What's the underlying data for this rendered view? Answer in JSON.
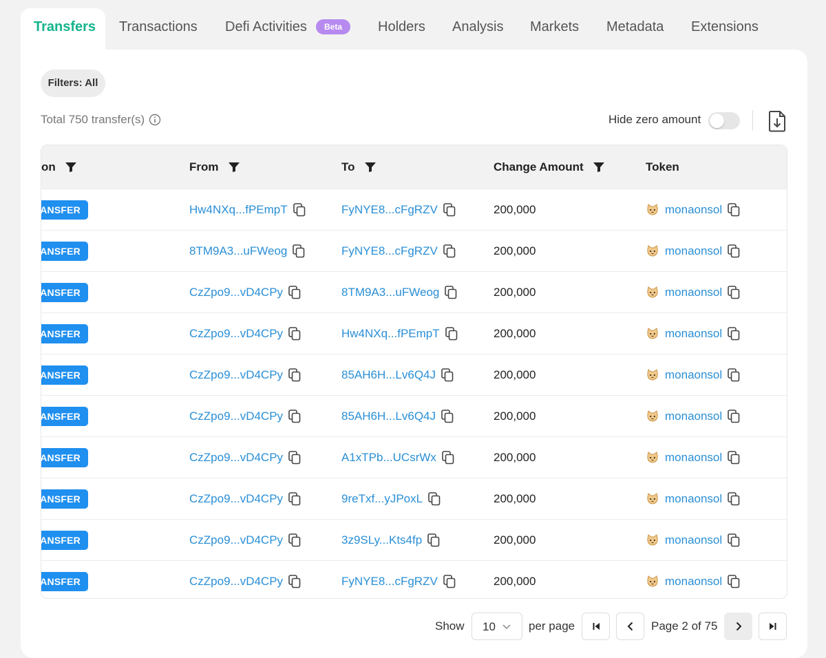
{
  "tabs": [
    {
      "label": "Transfers",
      "active": true
    },
    {
      "label": "Transactions"
    },
    {
      "label": "Defi Activities",
      "badge": "Beta"
    },
    {
      "label": "Holders"
    },
    {
      "label": "Analysis"
    },
    {
      "label": "Markets"
    },
    {
      "label": "Metadata"
    },
    {
      "label": "Extensions"
    }
  ],
  "filters": {
    "label": "Filters: All"
  },
  "summary": {
    "total": "Total 750 transfer(s)",
    "hide_zero_label": "Hide zero amount",
    "hide_zero_enabled": false
  },
  "table": {
    "columns": [
      "on",
      "From",
      "To",
      "Change Amount",
      "Token"
    ],
    "rows": [
      {
        "action": "ANSFER",
        "from": "Hw4NXq...fPEmpT",
        "to": "FyNYE8...cFgRZV",
        "amount": "200,000",
        "token": "monaonsol"
      },
      {
        "action": "ANSFER",
        "from": "8TM9A3...uFWeog",
        "to": "FyNYE8...cFgRZV",
        "amount": "200,000",
        "token": "monaonsol"
      },
      {
        "action": "ANSFER",
        "from": "CzZpo9...vD4CPy",
        "to": "8TM9A3...uFWeog",
        "amount": "200,000",
        "token": "monaonsol"
      },
      {
        "action": "ANSFER",
        "from": "CzZpo9...vD4CPy",
        "to": "Hw4NXq...fPEmpT",
        "amount": "200,000",
        "token": "monaonsol"
      },
      {
        "action": "ANSFER",
        "from": "CzZpo9...vD4CPy",
        "to": "85AH6H...Lv6Q4J",
        "amount": "200,000",
        "token": "monaonsol"
      },
      {
        "action": "ANSFER",
        "from": "CzZpo9...vD4CPy",
        "to": "85AH6H...Lv6Q4J",
        "amount": "200,000",
        "token": "monaonsol"
      },
      {
        "action": "ANSFER",
        "from": "CzZpo9...vD4CPy",
        "to": "A1xTPb...UCsrWx",
        "amount": "200,000",
        "token": "monaonsol"
      },
      {
        "action": "ANSFER",
        "from": "CzZpo9...vD4CPy",
        "to": "9reTxf...yJPoxL",
        "amount": "200,000",
        "token": "monaonsol"
      },
      {
        "action": "ANSFER",
        "from": "CzZpo9...vD4CPy",
        "to": "3z9SLy...Kts4fp",
        "amount": "200,000",
        "token": "monaonsol"
      },
      {
        "action": "ANSFER",
        "from": "CzZpo9...vD4CPy",
        "to": "FyNYE8...cFgRZV",
        "amount": "200,000",
        "token": "monaonsol"
      }
    ]
  },
  "pagination": {
    "show_label": "Show",
    "page_size": "10",
    "per_page_label": "per page",
    "page_label": "Page 2 of 75"
  },
  "icons": {
    "info": "info-icon",
    "download": "download-icon",
    "filter": "funnel-icon",
    "copy": "copy-icon",
    "token": "cat-face-icon",
    "first": "first-page-icon",
    "prev": "chevron-left-icon",
    "next": "chevron-right-icon",
    "last": "last-page-icon"
  },
  "colors": {
    "accent": "#14b48c",
    "link": "#2a8fd6",
    "badge": "#1f8ff0",
    "beta": "#b78af0"
  }
}
